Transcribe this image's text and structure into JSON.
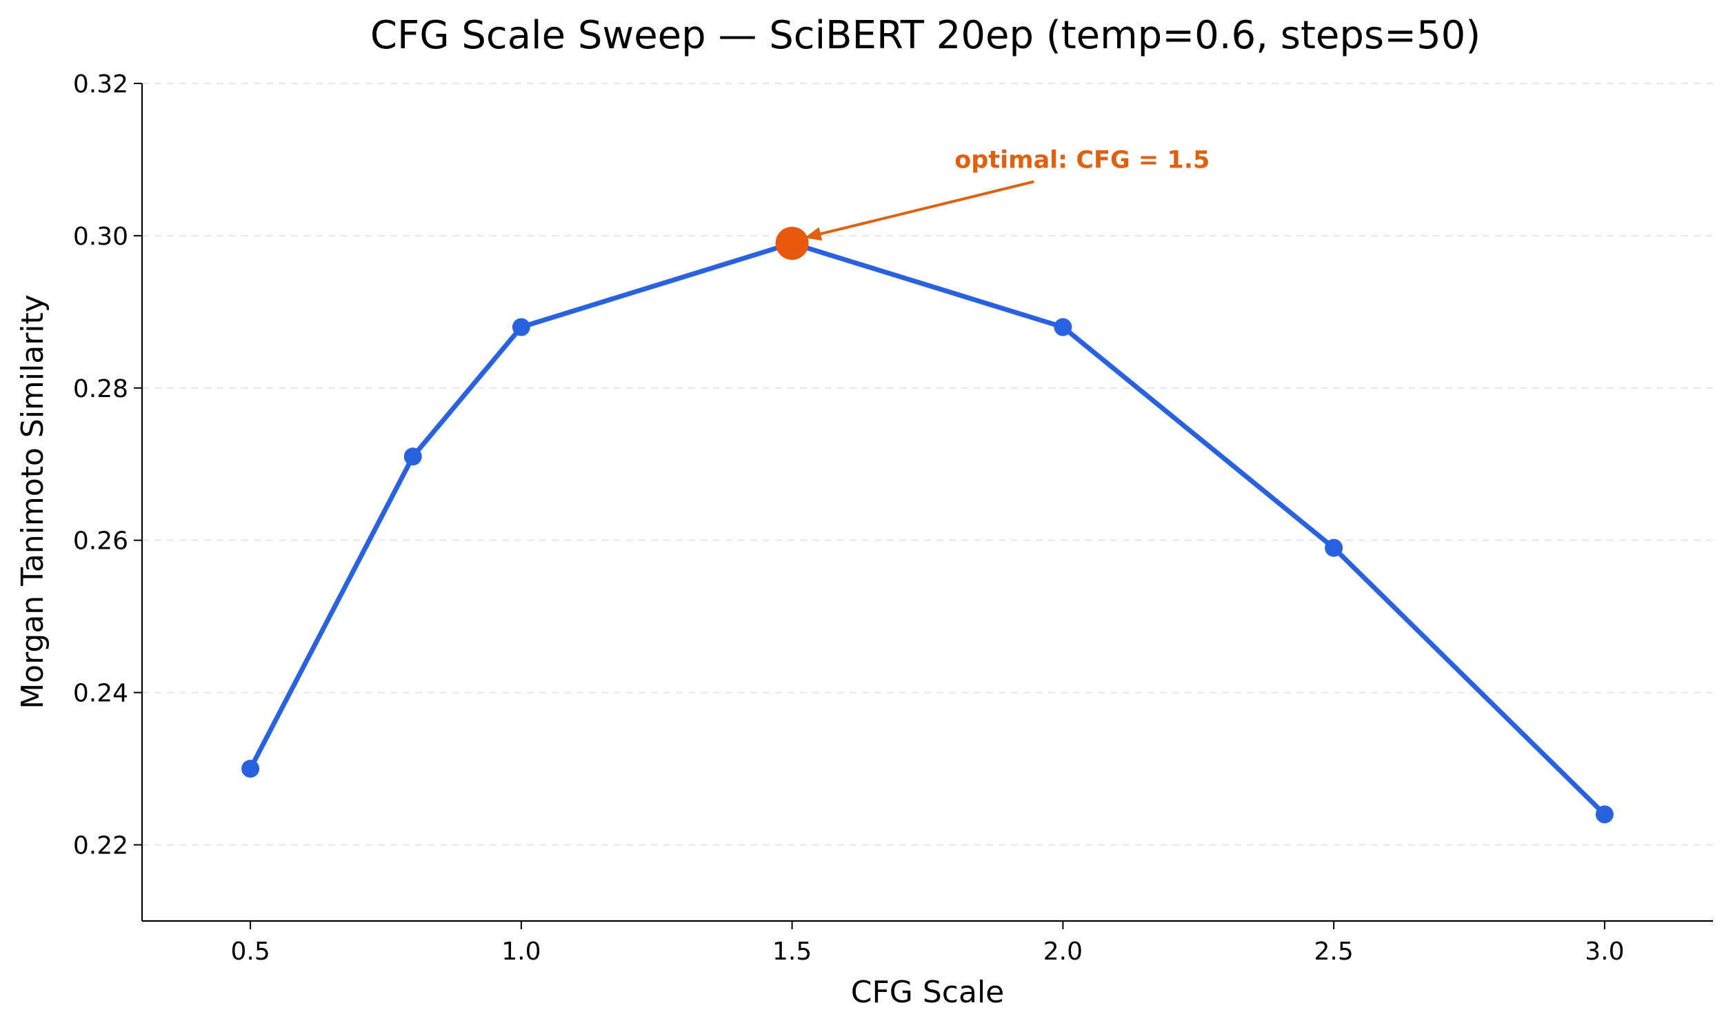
{
  "chart_data": {
    "type": "line",
    "title": "CFG Scale Sweep — SciBERT 20ep (temp=0.6, steps=50)",
    "xlabel": "CFG Scale",
    "ylabel": "Morgan Tanimoto Similarity",
    "x": [
      0.5,
      0.8,
      1.0,
      1.5,
      2.0,
      2.5,
      3.0
    ],
    "series": [
      {
        "values": [
          0.23,
          0.271,
          0.288,
          0.299,
          0.288,
          0.259,
          0.224
        ]
      }
    ],
    "xlim": [
      0.3,
      3.2
    ],
    "ylim": [
      0.21,
      0.32
    ],
    "xticks": [
      0.5,
      1.0,
      1.5,
      2.0,
      2.5,
      3.0
    ],
    "xtick_labels": [
      "0.5",
      "1.0",
      "1.5",
      "2.0",
      "2.5",
      "3.0"
    ],
    "yticks": [
      0.22,
      0.24,
      0.26,
      0.28,
      0.3,
      0.32
    ],
    "ytick_labels": [
      "0.22",
      "0.24",
      "0.26",
      "0.28",
      "0.30",
      "0.32"
    ],
    "grid": "horizontal dashed",
    "highlight": {
      "x": 1.5,
      "y": 0.299
    },
    "annotation": {
      "text": "optimal: CFG = 1.5",
      "x": 1.8,
      "y": 0.31
    },
    "colors": {
      "line": "#2962e0",
      "highlight": "#e8580e",
      "annotation": "#e0600f"
    }
  }
}
